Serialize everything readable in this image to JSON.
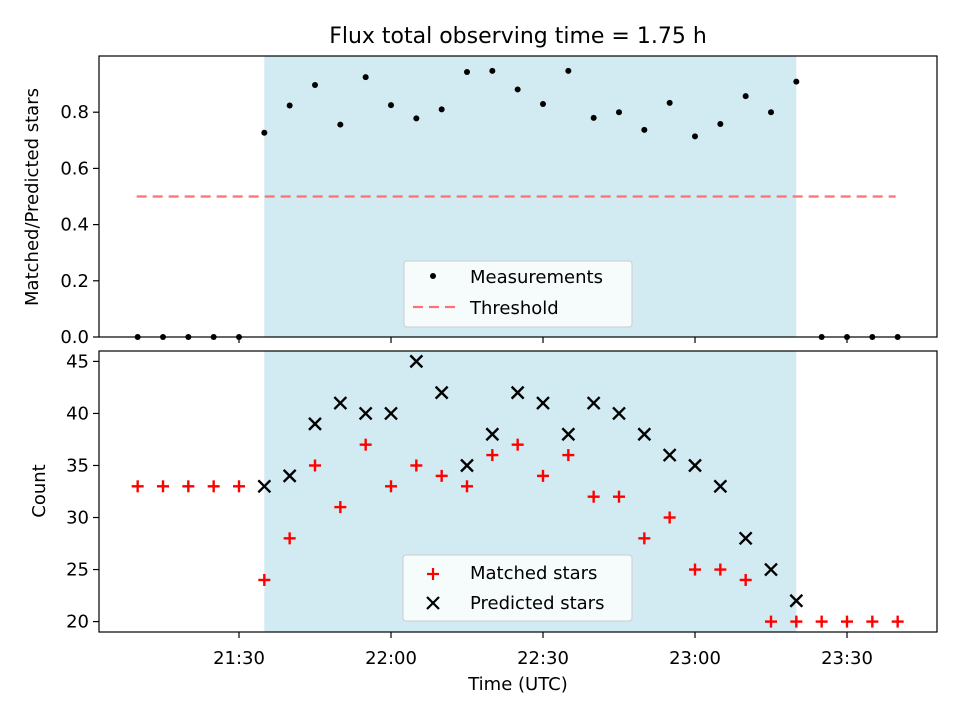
{
  "chart_data": [
    {
      "type": "scatter",
      "title": "Flux total observing time = 1.75 h",
      "ylabel": "Matched/Predicted stars",
      "xlabel": "",
      "xlim": [
        "21:05",
        "23:40"
      ],
      "ylim": [
        0,
        1.0
      ],
      "yticks": [
        0.0,
        0.2,
        0.4,
        0.6,
        0.8
      ],
      "ytick_labels": [
        "0.0",
        "0.2",
        "0.4",
        "0.6",
        "0.8"
      ],
      "shaded_span": [
        "21:35",
        "23:20"
      ],
      "shade_color": "#add8e6",
      "legend": {
        "placement": "lower-center",
        "entries": [
          "Measurements",
          "Threshold"
        ]
      },
      "series": [
        {
          "name": "Measurements",
          "color": "#000000",
          "marker": "dot",
          "x": [
            "21:10",
            "21:15",
            "21:20",
            "21:25",
            "21:30",
            "21:35",
            "21:40",
            "21:45",
            "21:50",
            "21:55",
            "22:00",
            "22:05",
            "22:10",
            "22:15",
            "22:20",
            "22:25",
            "22:30",
            "22:35",
            "22:40",
            "22:45",
            "22:50",
            "22:55",
            "23:00",
            "23:05",
            "23:10",
            "23:15",
            "23:20",
            "23:25",
            "23:30",
            "23:35",
            "23:40"
          ],
          "y": [
            0,
            0,
            0,
            0,
            0,
            0.727,
            0.824,
            0.897,
            0.756,
            0.925,
            0.825,
            0.778,
            0.81,
            0.943,
            0.947,
            0.881,
            0.829,
            0.947,
            0.78,
            0.8,
            0.737,
            0.833,
            0.714,
            0.758,
            0.857,
            0.8,
            0.909,
            0,
            0,
            0,
            0
          ]
        },
        {
          "name": "Threshold",
          "color": "#ff7070",
          "style": "dashed",
          "x": [
            "21:10",
            "23:40"
          ],
          "y": [
            0.5,
            0.5
          ]
        }
      ]
    },
    {
      "type": "scatter",
      "title": "",
      "ylabel": "Count",
      "xlabel": "Time (UTC)",
      "xlim": [
        "21:05",
        "23:40"
      ],
      "ylim": [
        19,
        46
      ],
      "yticks": [
        20,
        25,
        30,
        35,
        40,
        45
      ],
      "ytick_labels": [
        "20",
        "25",
        "30",
        "35",
        "40",
        "45"
      ],
      "xticks": [
        "21:30",
        "22:00",
        "22:30",
        "23:00",
        "23:30"
      ],
      "shaded_span": [
        "21:35",
        "23:20"
      ],
      "shade_color": "#add8e6",
      "legend": {
        "placement": "lower-center",
        "entries": [
          "Matched stars",
          "Predicted stars"
        ]
      },
      "series": [
        {
          "name": "Matched stars",
          "color": "#ff0000",
          "marker": "plus",
          "x": [
            "21:10",
            "21:15",
            "21:20",
            "21:25",
            "21:30",
            "21:35",
            "21:40",
            "21:45",
            "21:50",
            "21:55",
            "22:00",
            "22:05",
            "22:10",
            "22:15",
            "22:20",
            "22:25",
            "22:30",
            "22:35",
            "22:40",
            "22:45",
            "22:50",
            "22:55",
            "23:00",
            "23:05",
            "23:10",
            "23:15",
            "23:20",
            "23:25",
            "23:30",
            "23:35",
            "23:40"
          ],
          "y": [
            33,
            33,
            33,
            33,
            33,
            24,
            28,
            35,
            31,
            37,
            33,
            35,
            34,
            33,
            36,
            37,
            34,
            36,
            32,
            32,
            28,
            30,
            25,
            25,
            24,
            20,
            20,
            20,
            20,
            20,
            20
          ]
        },
        {
          "name": "Predicted stars",
          "color": "#000000",
          "marker": "x",
          "x": [
            "21:35",
            "21:40",
            "21:45",
            "21:50",
            "21:55",
            "22:00",
            "22:05",
            "22:10",
            "22:15",
            "22:20",
            "22:25",
            "22:30",
            "22:35",
            "22:40",
            "22:45",
            "22:50",
            "22:55",
            "23:00",
            "23:05",
            "23:10",
            "23:15",
            "23:20"
          ],
          "y": [
            33,
            34,
            39,
            41,
            40,
            40,
            45,
            42,
            35,
            38,
            42,
            41,
            38,
            41,
            40,
            38,
            36,
            35,
            33,
            28,
            25,
            22
          ]
        }
      ]
    }
  ]
}
